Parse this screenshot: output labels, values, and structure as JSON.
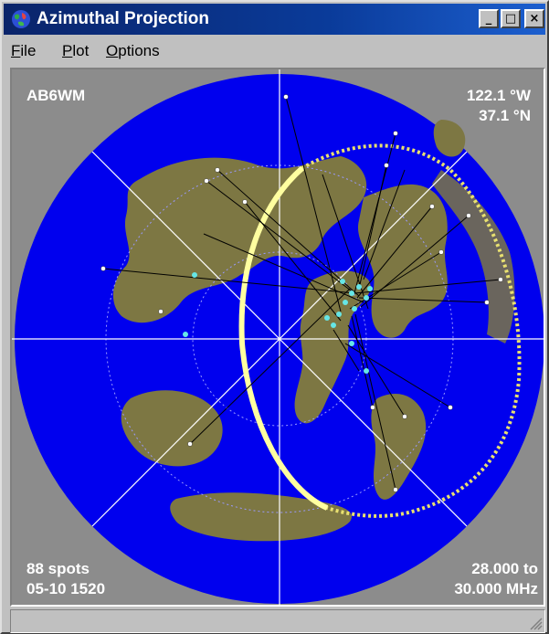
{
  "window": {
    "title": "Azimuthal Projection"
  },
  "controls": {
    "minimize": "_",
    "maximize": "□",
    "close": "×"
  },
  "menu": {
    "items": [
      {
        "label": "File",
        "accel": "F",
        "rest": "ile"
      },
      {
        "label": "Plot",
        "accel": "P",
        "rest": "lot"
      },
      {
        "label": "Options",
        "accel": "O",
        "rest": "ptions"
      }
    ]
  },
  "map": {
    "callsign": "AB6WM",
    "longitude": "122.1 °W",
    "latitude": "37.1 °N",
    "spot_count": "88 spots",
    "datetime": "05-10 1520",
    "freq_from": "28.000 to",
    "freq_to": "30.000 MHz",
    "colors": {
      "ocean": "#0000ee",
      "land": "#7d7743",
      "background": "#8c8c8c",
      "terminator_day": "#ffffa0",
      "terminator_night": "#d8d040",
      "spot_highlight": "#66e6e6",
      "path_lines": "#000000"
    }
  }
}
